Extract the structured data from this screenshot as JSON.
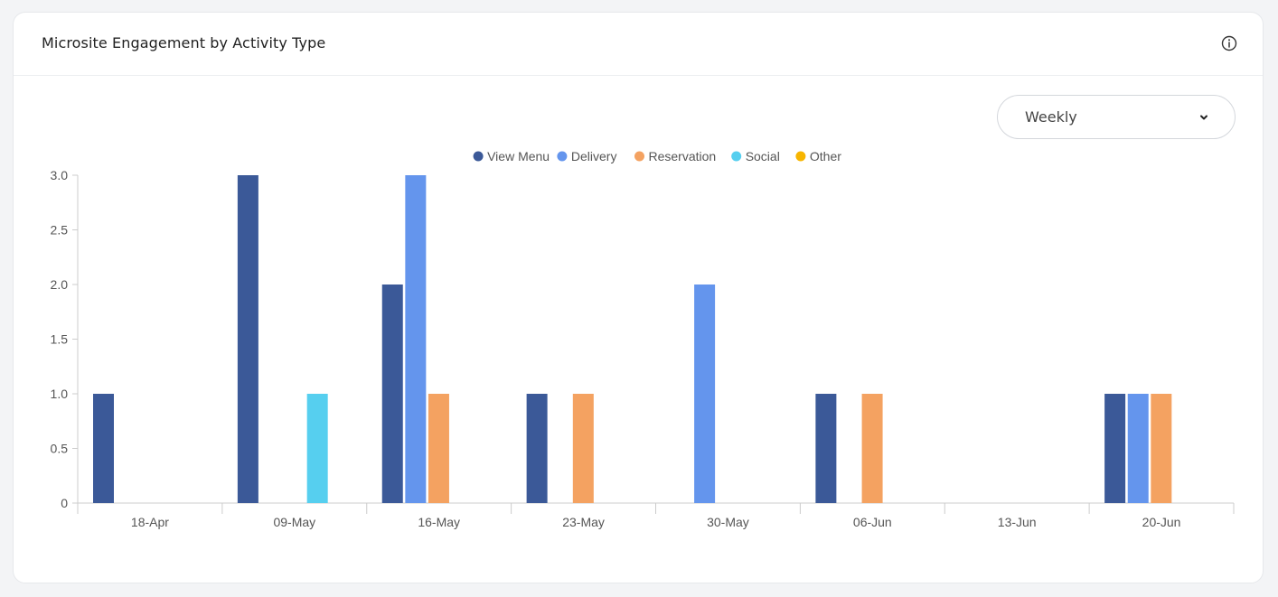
{
  "card": {
    "title": "Microsite Engagement by Activity Type",
    "info_icon": "info-circle-icon"
  },
  "period_select": {
    "selected": "Weekly",
    "icon": "chevron-down-icon"
  },
  "chart_data": {
    "type": "bar",
    "title": "",
    "xlabel": "",
    "ylabel": "",
    "ylim": [
      0,
      3.0
    ],
    "yticks": [
      "0",
      "0.5",
      "1.0",
      "1.5",
      "2.0",
      "2.5",
      "3.0"
    ],
    "grid": false,
    "legend_position": "top-center",
    "categories": [
      "18-Apr",
      "09-May",
      "16-May",
      "23-May",
      "30-May",
      "06-Jun",
      "13-Jun",
      "20-Jun"
    ],
    "series": [
      {
        "name": "View Menu",
        "color": "#3b5998",
        "values": [
          1,
          3,
          2,
          1,
          0,
          1,
          0,
          1
        ]
      },
      {
        "name": "Delivery",
        "color": "#6495ed",
        "values": [
          0,
          0,
          3,
          0,
          2,
          0,
          0,
          1
        ]
      },
      {
        "name": "Reservation",
        "color": "#f4a261",
        "values": [
          0,
          0,
          1,
          1,
          0,
          1,
          0,
          1
        ]
      },
      {
        "name": "Social",
        "color": "#56cfef",
        "values": [
          0,
          1,
          0,
          0,
          0,
          0,
          0,
          0
        ]
      },
      {
        "name": "Other",
        "color": "#f7b500",
        "values": [
          0,
          0,
          0,
          0,
          0,
          0,
          0,
          0
        ]
      }
    ]
  }
}
